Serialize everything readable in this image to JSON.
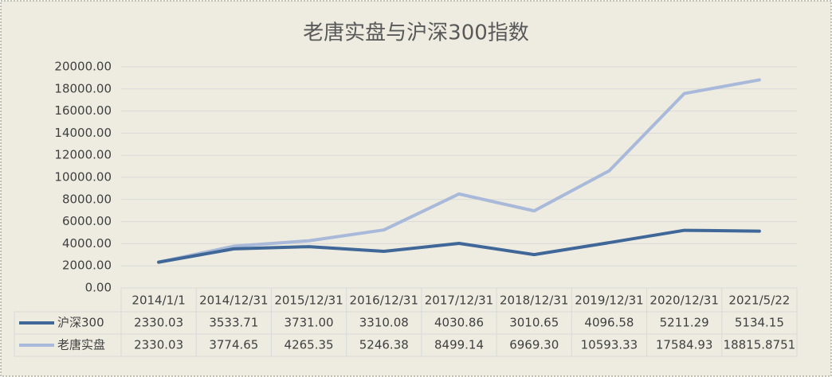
{
  "chart_data": {
    "type": "line",
    "title": "老唐实盘与沪深300指数",
    "categories": [
      "2014/1/1",
      "2014/12/31",
      "2015/12/31",
      "2016/12/31",
      "2017/12/31",
      "2018/12/31",
      "2019/12/31",
      "2020/12/31",
      "2021/5/22"
    ],
    "series": [
      {
        "name": "沪深300",
        "color": "#3f6797",
        "values": [
          2330.03,
          3533.71,
          3731.0,
          3310.08,
          4030.86,
          3010.65,
          4096.58,
          5211.29,
          5134.15
        ],
        "value_labels": [
          "2330.03",
          "3533.71",
          "3731.00",
          "3310.08",
          "4030.86",
          "3010.65",
          "4096.58",
          "5211.29",
          "5134.15"
        ]
      },
      {
        "name": "老唐实盘",
        "color": "#a9b9d9",
        "values": [
          2330.03,
          3774.65,
          4265.35,
          5246.38,
          8499.14,
          6969.3,
          10593.33,
          17584.93,
          18815.8751
        ],
        "value_labels": [
          "2330.03",
          "3774.65",
          "4265.35",
          "5246.38",
          "8499.14",
          "6969.30",
          "10593.33",
          "17584.93",
          "18815.8751"
        ]
      }
    ],
    "ylim": [
      0,
      20000
    ],
    "yticks": [
      {
        "value": 0,
        "label": "0.00"
      },
      {
        "value": 2000,
        "label": "2000.00"
      },
      {
        "value": 4000,
        "label": "4000.00"
      },
      {
        "value": 6000,
        "label": "6000.00"
      },
      {
        "value": 8000,
        "label": "8000.00"
      },
      {
        "value": 10000,
        "label": "10000.00"
      },
      {
        "value": 12000,
        "label": "12000.00"
      },
      {
        "value": 14000,
        "label": "14000.00"
      },
      {
        "value": 16000,
        "label": "16000.00"
      },
      {
        "value": 18000,
        "label": "18000.00"
      },
      {
        "value": 20000,
        "label": "20000.00"
      }
    ],
    "grid": true
  }
}
